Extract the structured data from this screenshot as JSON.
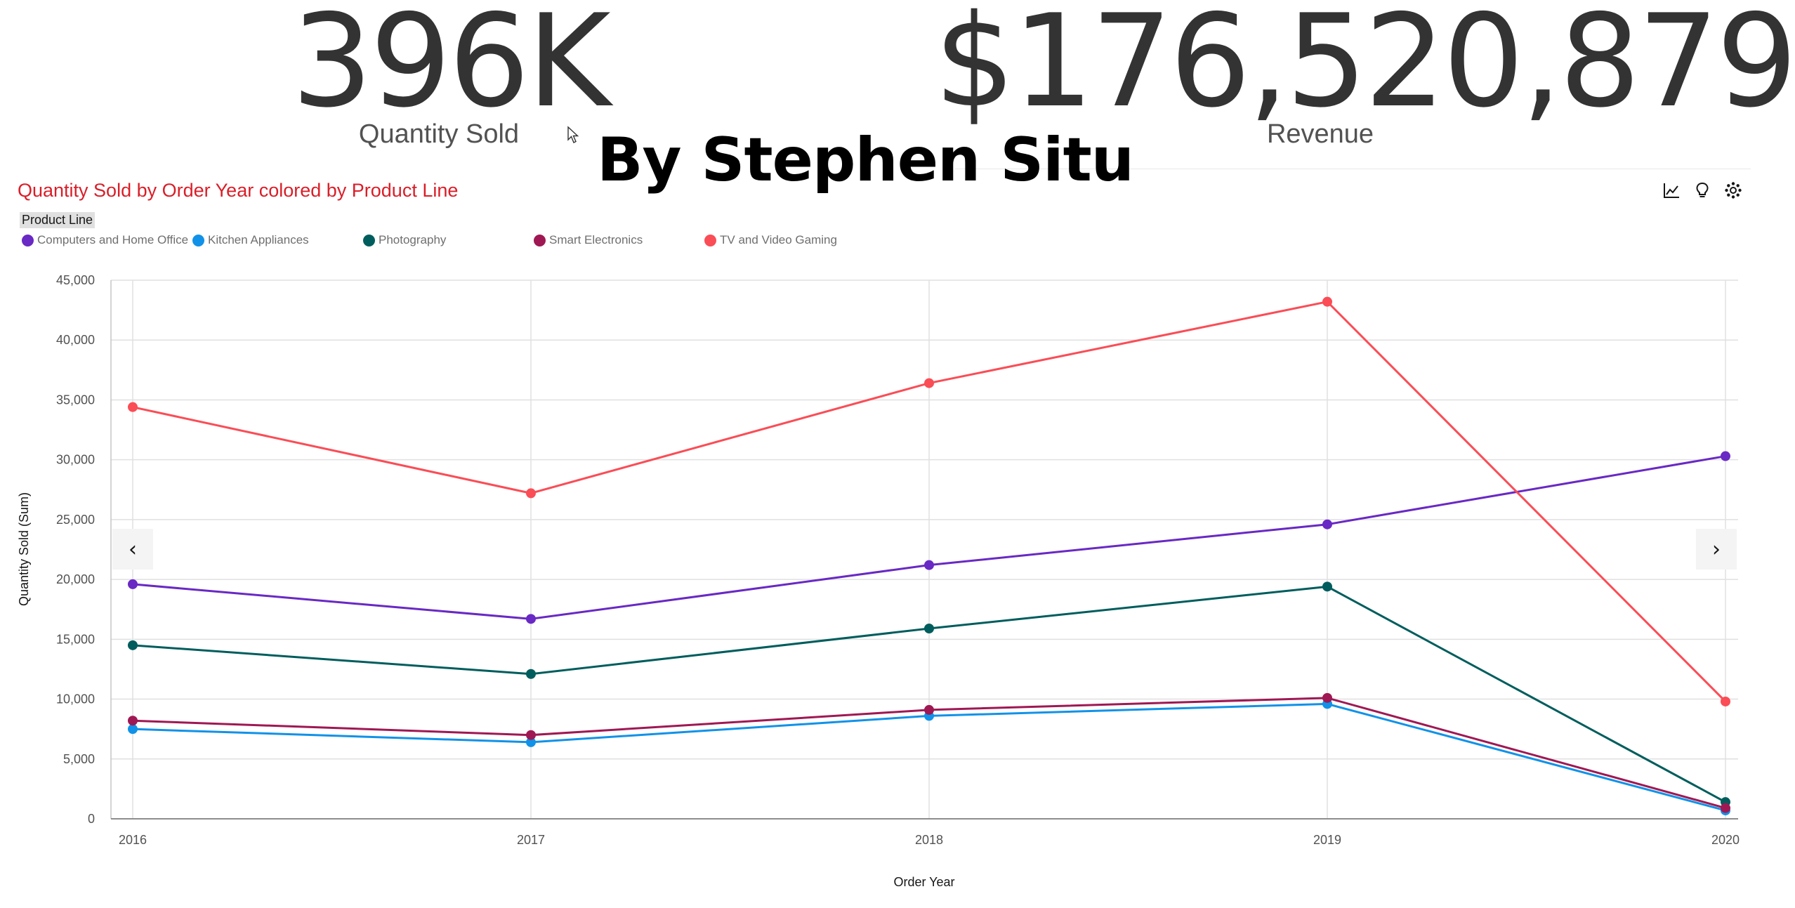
{
  "kpis": {
    "quantity": {
      "value": "396K",
      "label": "Quantity Sold"
    },
    "revenue": {
      "value": "$176,520,879",
      "label": "Revenue"
    }
  },
  "author": "By Stephen Situ",
  "toolbar": {
    "icons": [
      "line-chart-icon",
      "lightbulb-icon",
      "settings-icon"
    ]
  },
  "legend": {
    "title": "Product Line"
  },
  "chart_data": {
    "type": "line",
    "title": "Quantity Sold by Order Year colored by Product Line",
    "xlabel": "Order Year",
    "ylabel": "Quantity Sold (Sum)",
    "x": [
      "2016",
      "2017",
      "2018",
      "2019",
      "2020"
    ],
    "ylim": [
      0,
      45000
    ],
    "yticks": [
      0,
      5000,
      10000,
      15000,
      20000,
      25000,
      30000,
      35000,
      40000,
      45000
    ],
    "ytick_labels": [
      "0",
      "5,000",
      "10,000",
      "15,000",
      "20,000",
      "25,000",
      "30,000",
      "35,000",
      "40,000",
      "45,000"
    ],
    "grid": true,
    "legend_position": "top-left",
    "series": [
      {
        "name": "Computers and Home Office",
        "color": "#6929c4",
        "values": [
          19600,
          16700,
          21200,
          24600,
          30300
        ]
      },
      {
        "name": "Kitchen Appliances",
        "color": "#1192e8",
        "values": [
          7500,
          6400,
          8600,
          9600,
          700
        ]
      },
      {
        "name": "Photography",
        "color": "#005d5d",
        "values": [
          14500,
          12100,
          15900,
          19400,
          1400
        ]
      },
      {
        "name": "Smart Electronics",
        "color": "#9f1853",
        "values": [
          8200,
          7000,
          9100,
          10100,
          900
        ]
      },
      {
        "name": "TV and Video Gaming",
        "color": "#fa4d56",
        "values": [
          34400,
          27200,
          36400,
          43200,
          9800
        ]
      }
    ]
  }
}
